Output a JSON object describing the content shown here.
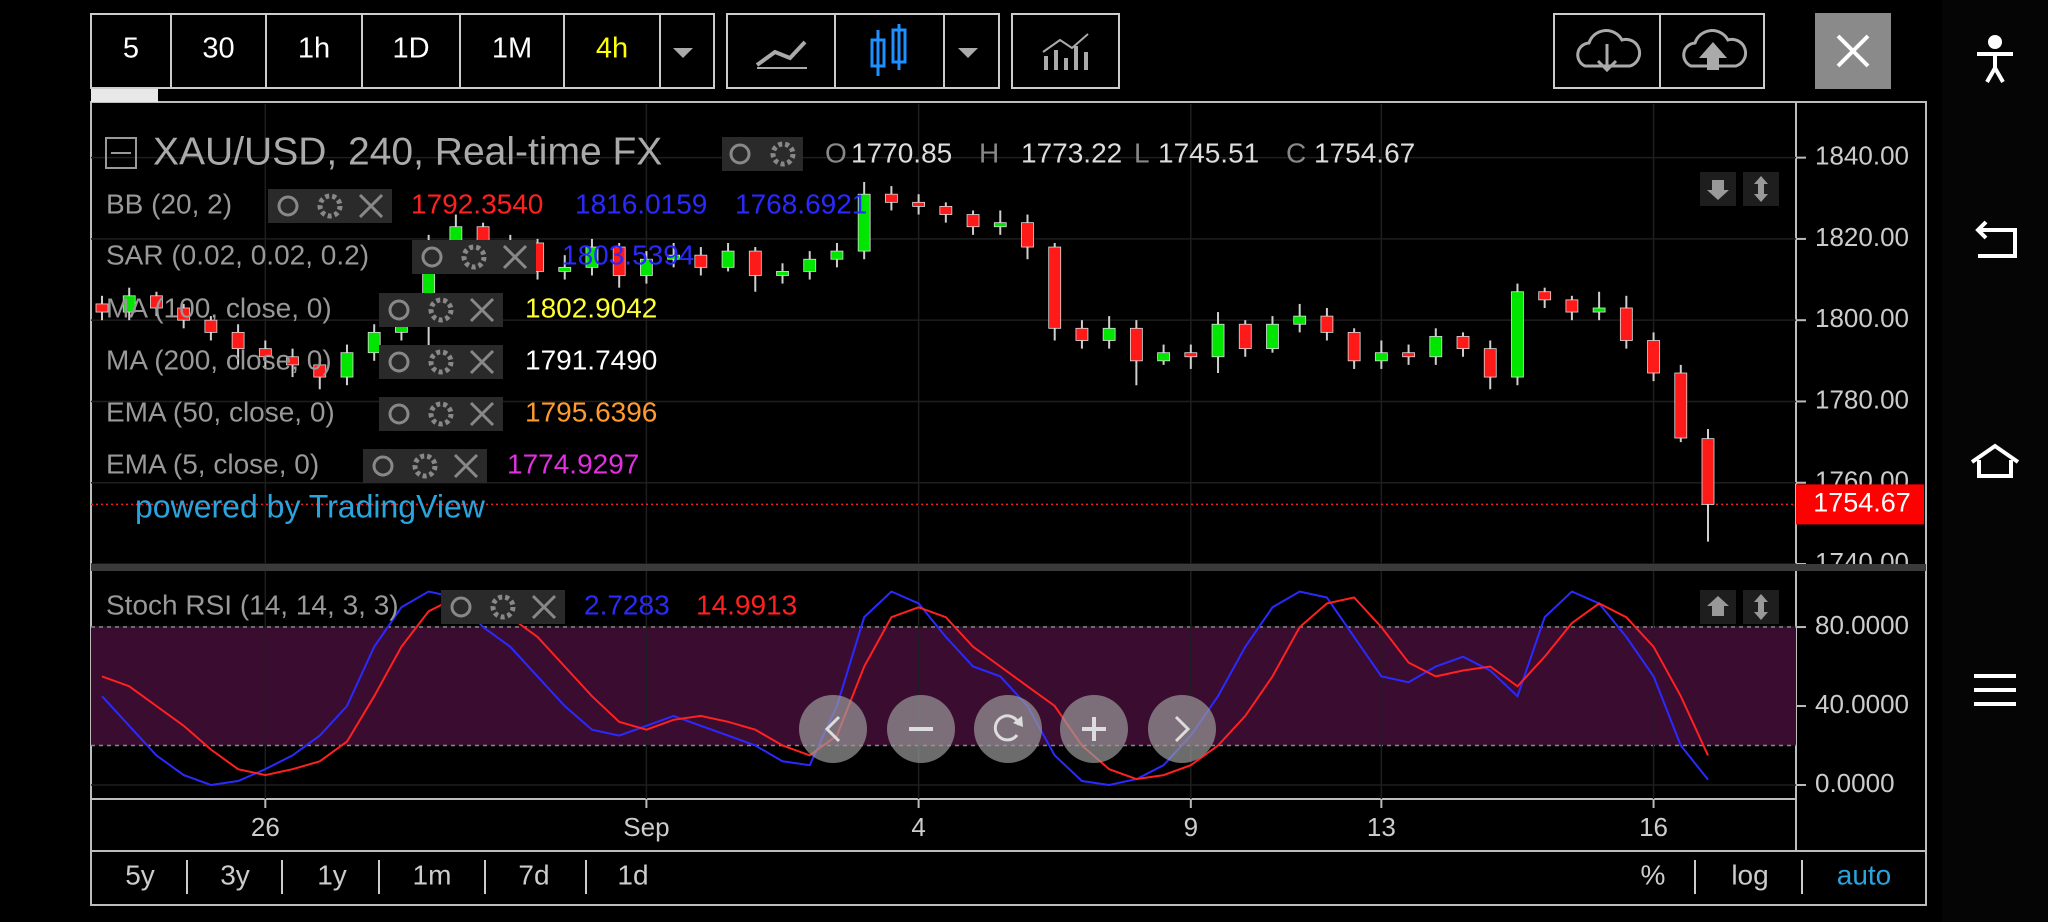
{
  "toolbar": {
    "intervals": [
      "5",
      "30",
      "1h",
      "1D",
      "1M",
      "4h"
    ]
  },
  "chart_data": [
    {
      "type": "candlestick",
      "title": "XAU/USD, 240, Real-time FX",
      "ohlc_labels": [
        "O",
        "H",
        "L",
        "C"
      ],
      "categories": [
        null,
        null,
        null,
        null,
        null,
        null,
        "26",
        null,
        null,
        null,
        null,
        null,
        null,
        null,
        null,
        null,
        null,
        null,
        null,
        null,
        "Sep",
        null,
        null,
        null,
        null,
        null,
        null,
        null,
        null,
        null,
        "4",
        null,
        null,
        null,
        null,
        null,
        null,
        null,
        null,
        null,
        "9",
        null,
        null,
        null,
        null,
        null,
        null,
        "13",
        null,
        null,
        null,
        null,
        null,
        null,
        null,
        null,
        null,
        "16",
        null,
        null
      ],
      "open": [
        1804,
        1802,
        1806,
        1803,
        1800,
        1797,
        1793,
        1791,
        1789,
        1786,
        1792,
        1797,
        1802,
        1819,
        1823,
        1817,
        1819,
        1812,
        1813,
        1818,
        1811,
        1815,
        1816,
        1813,
        1817,
        1811,
        1812,
        1815,
        1817,
        1831,
        1829,
        1828,
        1826,
        1823,
        1824,
        1818,
        1798,
        1795,
        1798,
        1790,
        1792,
        1791,
        1799,
        1793,
        1799,
        1801,
        1797,
        1790,
        1792,
        1791,
        1796,
        1793,
        1786,
        1807,
        1805,
        1802,
        1803,
        1795,
        1787,
        1770.85
      ],
      "high": [
        1806,
        1808,
        1807,
        1804,
        1801,
        1799,
        1795,
        1793,
        1791,
        1794,
        1799,
        1805,
        1821,
        1826,
        1824,
        1821,
        1820,
        1816,
        1820,
        1819,
        1817,
        1819,
        1818,
        1819,
        1818,
        1814,
        1817,
        1819,
        1834,
        1833,
        1831,
        1829,
        1827,
        1827,
        1826,
        1819,
        1800,
        1801,
        1800,
        1794,
        1794,
        1802,
        1800,
        1801,
        1804,
        1803,
        1798,
        1795,
        1794,
        1798,
        1797,
        1795,
        1809,
        1808,
        1806,
        1807,
        1806,
        1797,
        1789,
        1773.22
      ],
      "low": [
        1800,
        1800,
        1801,
        1798,
        1795,
        1789,
        1788,
        1786,
        1783,
        1784,
        1790,
        1795,
        1786,
        1816,
        1815,
        1815,
        1810,
        1810,
        1811,
        1808,
        1809,
        1813,
        1811,
        1812,
        1807,
        1809,
        1810,
        1813,
        1815,
        1827,
        1826,
        1824,
        1821,
        1821,
        1815,
        1795,
        1793,
        1793,
        1784,
        1789,
        1788,
        1787,
        1791,
        1792,
        1797,
        1795,
        1788,
        1788,
        1789,
        1789,
        1791,
        1783,
        1784,
        1803,
        1800,
        1800,
        1793,
        1785,
        1770,
        1745.51
      ],
      "close": [
        1802,
        1806,
        1803,
        1800,
        1797,
        1793,
        1791,
        1789,
        1786,
        1792,
        1797,
        1802,
        1819,
        1823,
        1817,
        1819,
        1812,
        1813,
        1818,
        1811,
        1815,
        1816,
        1813,
        1817,
        1811,
        1812,
        1815,
        1817,
        1831,
        1829,
        1828,
        1826,
        1823,
        1824,
        1818,
        1798,
        1795,
        1798,
        1790,
        1792,
        1791,
        1799,
        1793,
        1799,
        1801,
        1797,
        1790,
        1792,
        1791,
        1796,
        1793,
        1786,
        1807,
        1805,
        1802,
        1803,
        1795,
        1787,
        1771,
        1754.67
      ],
      "up_color": "#00e600",
      "down_color": "#ff1a1a",
      "wick_color": "#cfcfcf",
      "ylim": [
        1740,
        1853.2
      ],
      "yticks": [
        {
          "value": 1740,
          "label": "1740.00"
        },
        {
          "value": 1760,
          "label": "1760.00"
        },
        {
          "value": 1780,
          "label": "1780.00"
        },
        {
          "value": 1800,
          "label": "1800.00"
        },
        {
          "value": 1820,
          "label": "1820.00"
        },
        {
          "value": 1840,
          "label": "1840.00"
        }
      ],
      "grid": true,
      "indicators": [
        {
          "name": "BB (20, 2)",
          "values": [
            "1792.3540",
            "1816.0159",
            "1768.6921"
          ],
          "colors": [
            "#ff2020",
            "#2a2aff",
            "#2a2aff"
          ]
        },
        {
          "name": "SAR (0.02, 0.02, 0.2)",
          "values": [
            "1803.5394"
          ],
          "colors": [
            "#2a2aff"
          ]
        },
        {
          "name": "MA (100, close, 0)",
          "values": [
            "1802.9042"
          ],
          "colors": [
            "#ffff33"
          ]
        },
        {
          "name": "MA (200, close, 0)",
          "values": [
            "1791.7490"
          ],
          "colors": [
            "#ffffff"
          ]
        },
        {
          "name": "EMA (50, close, 0)",
          "values": [
            "1795.6396"
          ],
          "colors": [
            "#ff9a2e"
          ]
        },
        {
          "name": "EMA (5, close, 0)",
          "values": [
            "1774.9297"
          ],
          "colors": [
            "#e030e0"
          ]
        }
      ],
      "watermark": "powered by TradingView"
    },
    {
      "type": "line",
      "title": "Stoch RSI (14, 14, 3, 3)",
      "series": [
        {
          "color": "#2a2aff",
          "values": [
            45,
            30,
            15,
            5,
            0,
            2,
            8,
            15,
            25,
            40,
            70,
            90,
            98,
            95,
            80,
            70,
            55,
            40,
            28,
            25,
            30,
            35,
            30,
            25,
            20,
            12,
            10,
            40,
            85,
            98,
            92,
            75,
            60,
            55,
            40,
            15,
            2,
            0,
            3,
            10,
            25,
            45,
            70,
            90,
            98,
            95,
            75,
            55,
            52,
            60,
            65,
            58,
            45,
            85,
            98,
            92,
            75,
            55,
            20,
            2.7283
          ]
        },
        {
          "color": "#ff2020",
          "values": [
            55,
            50,
            40,
            30,
            18,
            8,
            5,
            8,
            12,
            22,
            45,
            70,
            88,
            95,
            92,
            85,
            75,
            60,
            45,
            32,
            28,
            33,
            35,
            32,
            28,
            20,
            15,
            25,
            60,
            85,
            90,
            85,
            70,
            60,
            50,
            40,
            20,
            8,
            3,
            5,
            10,
            20,
            35,
            55,
            80,
            92,
            95,
            80,
            62,
            55,
            58,
            60,
            50,
            65,
            82,
            92,
            85,
            70,
            45,
            14.9913
          ]
        }
      ],
      "band": [
        20,
        80
      ],
      "band_color": "#3a0c30",
      "ylim": [
        -7.1,
        108.4
      ],
      "yticks": [
        {
          "value": 0,
          "label": "0.0000"
        },
        {
          "value": 40,
          "label": "40.0000"
        },
        {
          "value": 80,
          "label": "80.0000"
        }
      ],
      "grid": true
    }
  ],
  "range_buttons": [
    "5y",
    "3y",
    "1y",
    "1m",
    "7d",
    "1d"
  ],
  "scale_buttons": [
    "%",
    "log",
    "auto"
  ]
}
